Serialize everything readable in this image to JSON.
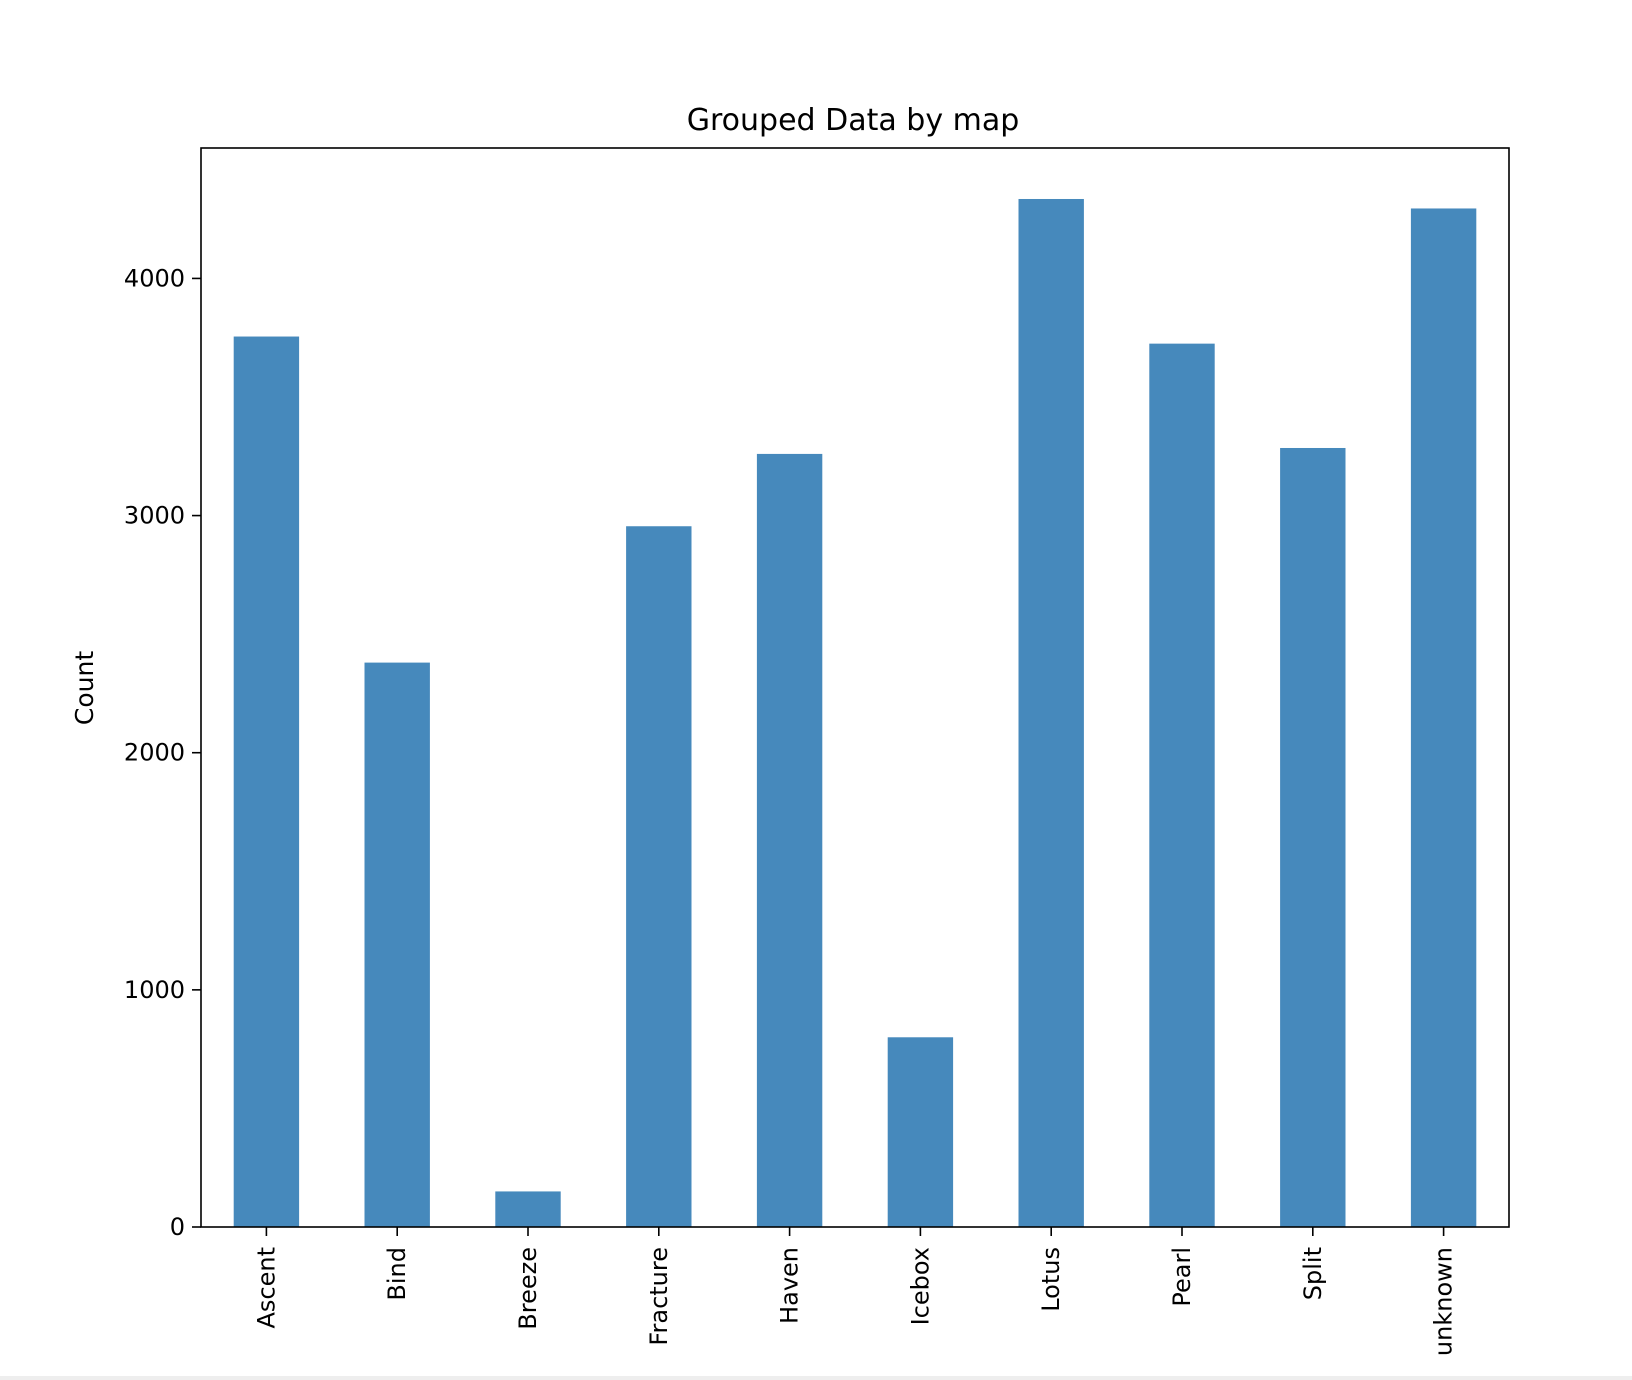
{
  "chart_data": {
    "type": "bar",
    "title": "Grouped Data by map",
    "xlabel": "",
    "ylabel": "Count",
    "categories": [
      "Ascent",
      "Bind",
      "Breeze",
      "Fracture",
      "Haven",
      "Icebox",
      "Lotus",
      "Pearl",
      "Split",
      "unknown"
    ],
    "values": [
      3755,
      2380,
      150,
      2955,
      3260,
      800,
      4335,
      3725,
      3285,
      4295
    ],
    "ylim": [
      0,
      4550
    ],
    "yticks": [
      0,
      1000,
      2000,
      3000,
      4000
    ],
    "grid": false,
    "bar_color": "#4689bc"
  }
}
